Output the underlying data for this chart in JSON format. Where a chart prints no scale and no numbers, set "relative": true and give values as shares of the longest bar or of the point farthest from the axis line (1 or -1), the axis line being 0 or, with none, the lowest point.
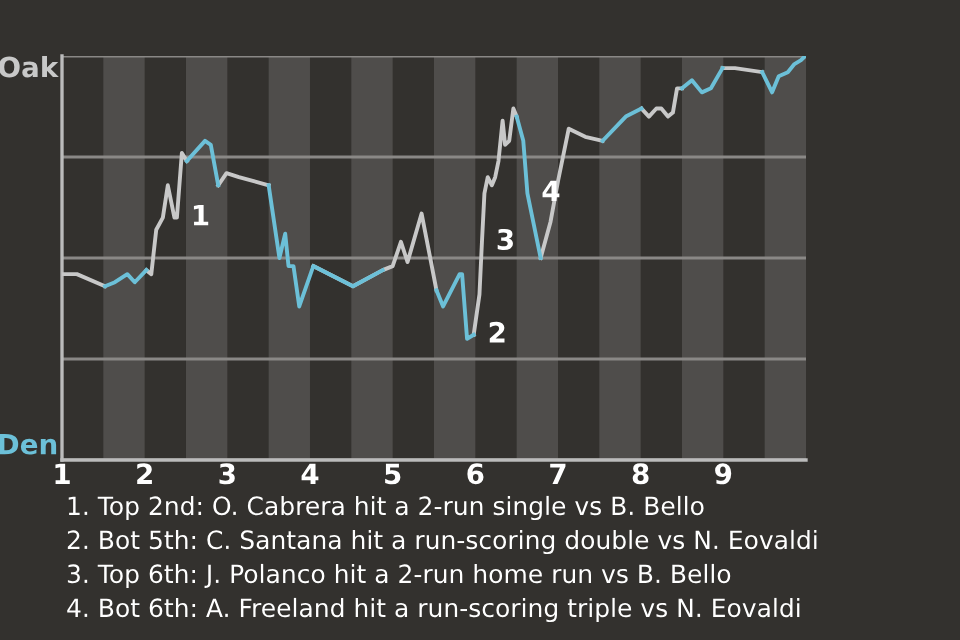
{
  "chart_data": {
    "type": "line",
    "relative": true,
    "grid": "y",
    "legend": false,
    "x": [
      1.0,
      1.18,
      1.52,
      1.64,
      1.79,
      1.88,
      2.02,
      2.08,
      2.14,
      2.22,
      2.28,
      2.36,
      2.39,
      2.45,
      2.51,
      2.73,
      2.8,
      2.89,
      2.99,
      3.14,
      3.5,
      3.63,
      3.7,
      3.74,
      3.8,
      3.87,
      4.04,
      4.52,
      4.88,
      5.0,
      5.1,
      5.18,
      5.35,
      5.53,
      5.61,
      5.81,
      5.84,
      5.9,
      5.98,
      6.05,
      6.08,
      6.11,
      6.15,
      6.2,
      6.24,
      6.28,
      6.33,
      6.36,
      6.41,
      6.46,
      6.5,
      6.58,
      6.63,
      6.79,
      6.91,
      7.0,
      7.13,
      7.33,
      7.54,
      7.82,
      8.01,
      8.1,
      8.19,
      8.25,
      8.33,
      8.39,
      8.44,
      8.5,
      8.62,
      8.74,
      8.85,
      8.99,
      9.14,
      9.47,
      9.59,
      9.67,
      9.78,
      9.86,
      9.94,
      9.99
    ],
    "series": [
      {
        "name": "Oak",
        "color": "#c8c8c8",
        "values": [
          0.46,
          0.46,
          0.43,
          null,
          null,
          null,
          0.47,
          0.46,
          0.57,
          0.6,
          0.68,
          0.6,
          0.6,
          0.76,
          0.74,
          null,
          null,
          0.68,
          0.71,
          0.7,
          0.68,
          null,
          null,
          null,
          null,
          null,
          0.48,
          0.43,
          0.47,
          0.48,
          0.54,
          0.49,
          0.61,
          0.42,
          null,
          null,
          null,
          null,
          0.31,
          0.41,
          0.54,
          0.66,
          0.7,
          0.68,
          0.7,
          0.74,
          0.84,
          0.78,
          0.79,
          0.87,
          0.85,
          null,
          null,
          0.5,
          0.59,
          0.69,
          0.82,
          0.8,
          0.79,
          null,
          0.87,
          0.85,
          0.87,
          0.87,
          0.85,
          0.86,
          0.92,
          0.92,
          null,
          null,
          null,
          0.97,
          0.97,
          0.96,
          null,
          null,
          null,
          null,
          null,
          null
        ]
      },
      {
        "name": "Den",
        "color": "#6cc0d8",
        "values": [
          null,
          null,
          0.43,
          0.44,
          0.46,
          0.44,
          0.47,
          null,
          null,
          null,
          null,
          null,
          null,
          null,
          0.74,
          0.79,
          0.78,
          0.68,
          null,
          null,
          0.68,
          0.5,
          0.56,
          0.48,
          0.48,
          0.38,
          0.48,
          0.43,
          0.47,
          null,
          null,
          null,
          null,
          0.42,
          0.38,
          0.46,
          0.46,
          0.3,
          0.31,
          null,
          null,
          null,
          null,
          null,
          null,
          null,
          null,
          null,
          null,
          null,
          0.85,
          0.79,
          0.66,
          0.5,
          null,
          null,
          null,
          null,
          0.79,
          0.85,
          0.87,
          null,
          null,
          null,
          null,
          null,
          null,
          0.92,
          0.94,
          0.91,
          0.92,
          0.97,
          null,
          0.96,
          0.91,
          0.95,
          0.96,
          0.98,
          0.99,
          1.0
        ]
      }
    ],
    "xlim": [
      1,
      10
    ],
    "xticks": [
      1,
      2,
      3,
      4,
      5,
      6,
      7,
      8,
      9
    ],
    "bands": [
      {
        "axis": "x",
        "from": 1.5,
        "to": 2,
        "color": "#4f4d4b"
      },
      {
        "axis": "x",
        "from": 2.5,
        "to": 3,
        "color": "#4f4d4b"
      },
      {
        "axis": "x",
        "from": 3.5,
        "to": 4,
        "color": "#4f4d4b"
      },
      {
        "axis": "x",
        "from": 4.5,
        "to": 5,
        "color": "#4f4d4b"
      },
      {
        "axis": "x",
        "from": 5.5,
        "to": 6,
        "color": "#4f4d4b"
      },
      {
        "axis": "x",
        "from": 6.5,
        "to": 7,
        "color": "#4f4d4b"
      },
      {
        "axis": "x",
        "from": 7.5,
        "to": 8,
        "color": "#4f4d4b"
      },
      {
        "axis": "x",
        "from": 8.5,
        "to": 9,
        "color": "#4f4d4b"
      },
      {
        "axis": "x",
        "from": 9.5,
        "to": 10,
        "color": "#4f4d4b"
      }
    ],
    "annotations": [
      {
        "text": "1",
        "x": 2.39,
        "y": 0.6
      },
      {
        "text": "2",
        "x": 5.98,
        "y": 0.31
      },
      {
        "text": "3",
        "x": 6.08,
        "y": 0.54
      },
      {
        "text": "4",
        "x": 6.63,
        "y": 0.66
      },
      "1. Top 2nd: O. Cabrera hit a 2-run single vs B. Bello",
      "2. Bot 5th: C. Santana hit a run-scoring double vs N. Eovaldi",
      "3. Top 6th: J. Polanco hit a 2-run home run vs B. Bello",
      "4. Bot 6th: A. Freeland hit a run-scoring triple vs N. Eovaldi"
    ]
  }
}
